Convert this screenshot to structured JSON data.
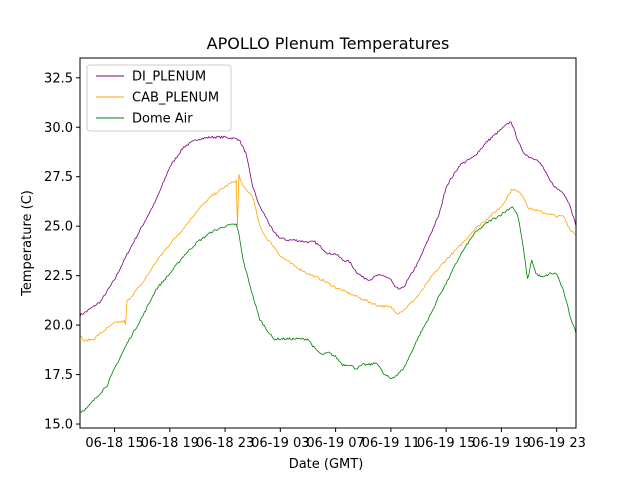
{
  "chart_data": {
    "type": "line",
    "title": "APOLLO Plenum Temperatures",
    "xlabel": "Date (GMT)",
    "ylabel": "Temperature (C)",
    "xlim": [
      12.5,
      48.4
    ],
    "ylim": [
      14.8,
      33.5
    ],
    "x_unit": "hours since 06-18 00:00 GMT",
    "xticks": [
      {
        "value": 15,
        "label": "06-18 15"
      },
      {
        "value": 19,
        "label": "06-18 19"
      },
      {
        "value": 23,
        "label": "06-18 23"
      },
      {
        "value": 27,
        "label": "06-19 03"
      },
      {
        "value": 31,
        "label": "06-19 07"
      },
      {
        "value": 35,
        "label": "06-19 11"
      },
      {
        "value": 39,
        "label": "06-19 15"
      },
      {
        "value": 43,
        "label": "06-19 19"
      },
      {
        "value": 47,
        "label": "06-19 23"
      }
    ],
    "yticks": [
      {
        "value": 15.0,
        "label": "15.0"
      },
      {
        "value": 17.5,
        "label": "17.5"
      },
      {
        "value": 20.0,
        "label": "20.0"
      },
      {
        "value": 22.5,
        "label": "22.5"
      },
      {
        "value": 25.0,
        "label": "25.0"
      },
      {
        "value": 27.5,
        "label": "27.5"
      },
      {
        "value": 30.0,
        "label": "30.0"
      },
      {
        "value": 32.5,
        "label": "32.5"
      }
    ],
    "legend_position": "top-left",
    "series": [
      {
        "name": "DI_PLENUM",
        "color": "#800080",
        "points": [
          [
            12.5,
            20.5
          ],
          [
            13.0,
            20.7
          ],
          [
            14.0,
            21.2
          ],
          [
            15.0,
            22.3
          ],
          [
            16.0,
            23.7
          ],
          [
            17.0,
            25.0
          ],
          [
            18.0,
            26.3
          ],
          [
            19.0,
            28.0
          ],
          [
            20.0,
            29.0
          ],
          [
            21.0,
            29.4
          ],
          [
            22.0,
            29.5
          ],
          [
            23.0,
            29.5
          ],
          [
            24.0,
            29.4
          ],
          [
            24.5,
            28.7
          ],
          [
            25.0,
            27.0
          ],
          [
            25.5,
            26.0
          ],
          [
            26.0,
            25.4
          ],
          [
            26.5,
            24.7
          ],
          [
            27.0,
            24.4
          ],
          [
            27.5,
            24.3
          ],
          [
            28.0,
            24.3
          ],
          [
            29.0,
            24.2
          ],
          [
            29.5,
            24.2
          ],
          [
            30.0,
            23.9
          ],
          [
            30.5,
            23.6
          ],
          [
            31.0,
            23.6
          ],
          [
            31.5,
            23.3
          ],
          [
            32.0,
            23.2
          ],
          [
            32.5,
            22.7
          ],
          [
            33.0,
            22.4
          ],
          [
            33.5,
            22.3
          ],
          [
            34.0,
            22.5
          ],
          [
            34.5,
            22.5
          ],
          [
            35.0,
            22.3
          ],
          [
            35.3,
            21.9
          ],
          [
            35.7,
            21.8
          ],
          [
            36.0,
            22.0
          ],
          [
            37.0,
            23.2
          ],
          [
            38.0,
            24.8
          ],
          [
            38.5,
            25.6
          ],
          [
            39.0,
            27.0
          ],
          [
            40.0,
            28.1
          ],
          [
            41.0,
            28.5
          ],
          [
            42.0,
            29.3
          ],
          [
            43.0,
            29.9
          ],
          [
            43.7,
            30.3
          ],
          [
            44.0,
            29.7
          ],
          [
            44.5,
            28.8
          ],
          [
            45.0,
            28.5
          ],
          [
            45.5,
            28.4
          ],
          [
            46.0,
            28.0
          ],
          [
            46.5,
            27.3
          ],
          [
            47.0,
            26.9
          ],
          [
            47.5,
            26.7
          ],
          [
            48.0,
            26.0
          ],
          [
            48.4,
            25.0
          ]
        ]
      },
      {
        "name": "CAB_PLENUM",
        "color": "#ffa500",
        "points": [
          [
            12.5,
            19.5
          ],
          [
            12.8,
            19.2
          ],
          [
            13.5,
            19.3
          ],
          [
            14.0,
            19.6
          ],
          [
            15.0,
            20.1
          ],
          [
            15.7,
            20.2
          ],
          [
            15.8,
            20.0
          ],
          [
            15.9,
            21.2
          ],
          [
            17.0,
            22.1
          ],
          [
            18.0,
            23.2
          ],
          [
            19.0,
            24.1
          ],
          [
            20.0,
            24.9
          ],
          [
            21.0,
            25.8
          ],
          [
            22.0,
            26.5
          ],
          [
            23.0,
            27.0
          ],
          [
            23.5,
            27.2
          ],
          [
            23.8,
            27.3
          ],
          [
            23.9,
            25.0
          ],
          [
            24.0,
            27.6
          ],
          [
            24.3,
            27.0
          ],
          [
            25.0,
            26.5
          ],
          [
            25.5,
            25.0
          ],
          [
            26.0,
            24.4
          ],
          [
            26.5,
            24.0
          ],
          [
            27.0,
            23.5
          ],
          [
            28.0,
            23.0
          ],
          [
            29.0,
            22.6
          ],
          [
            30.0,
            22.3
          ],
          [
            31.0,
            21.9
          ],
          [
            32.0,
            21.6
          ],
          [
            33.0,
            21.3
          ],
          [
            34.0,
            21.0
          ],
          [
            35.0,
            20.9
          ],
          [
            35.5,
            20.6
          ],
          [
            36.0,
            20.8
          ],
          [
            37.0,
            21.5
          ],
          [
            38.0,
            22.5
          ],
          [
            39.0,
            23.3
          ],
          [
            40.0,
            24.0
          ],
          [
            41.0,
            24.8
          ],
          [
            42.0,
            25.4
          ],
          [
            43.0,
            26.0
          ],
          [
            43.8,
            26.9
          ],
          [
            44.5,
            26.6
          ],
          [
            45.0,
            25.9
          ],
          [
            45.5,
            25.8
          ],
          [
            46.0,
            25.7
          ],
          [
            46.5,
            25.6
          ],
          [
            47.0,
            25.5
          ],
          [
            47.5,
            25.5
          ],
          [
            48.0,
            24.8
          ],
          [
            48.4,
            24.6
          ]
        ]
      },
      {
        "name": "Dome Air",
        "color": "#008000",
        "points": [
          [
            12.5,
            15.6
          ],
          [
            13.0,
            15.8
          ],
          [
            14.0,
            16.6
          ],
          [
            14.5,
            17.0
          ],
          [
            15.0,
            17.8
          ],
          [
            16.0,
            19.2
          ],
          [
            17.0,
            20.4
          ],
          [
            18.0,
            21.8
          ],
          [
            19.0,
            22.6
          ],
          [
            20.0,
            23.5
          ],
          [
            21.0,
            24.2
          ],
          [
            22.0,
            24.7
          ],
          [
            23.0,
            25.0
          ],
          [
            23.8,
            25.1
          ],
          [
            24.0,
            24.6
          ],
          [
            24.3,
            23.3
          ],
          [
            25.0,
            21.5
          ],
          [
            25.5,
            20.3
          ],
          [
            26.0,
            19.8
          ],
          [
            26.5,
            19.3
          ],
          [
            27.0,
            19.3
          ],
          [
            28.0,
            19.3
          ],
          [
            29.0,
            19.3
          ],
          [
            29.5,
            18.8
          ],
          [
            30.0,
            18.5
          ],
          [
            30.5,
            18.6
          ],
          [
            31.0,
            18.4
          ],
          [
            31.5,
            18.0
          ],
          [
            32.0,
            18.0
          ],
          [
            32.5,
            17.8
          ],
          [
            33.0,
            18.0
          ],
          [
            33.5,
            18.0
          ],
          [
            34.0,
            18.1
          ],
          [
            34.5,
            17.5
          ],
          [
            35.0,
            17.3
          ],
          [
            35.5,
            17.5
          ],
          [
            36.0,
            17.9
          ],
          [
            37.0,
            19.4
          ],
          [
            38.0,
            20.7
          ],
          [
            38.5,
            21.5
          ],
          [
            39.0,
            22.1
          ],
          [
            40.0,
            23.5
          ],
          [
            41.0,
            24.6
          ],
          [
            42.0,
            25.2
          ],
          [
            43.0,
            25.6
          ],
          [
            43.8,
            26.0
          ],
          [
            44.2,
            25.5
          ],
          [
            44.5,
            24.3
          ],
          [
            44.9,
            22.3
          ],
          [
            45.2,
            23.3
          ],
          [
            45.5,
            22.6
          ],
          [
            46.0,
            22.4
          ],
          [
            46.5,
            22.6
          ],
          [
            47.0,
            22.6
          ],
          [
            47.5,
            21.7
          ],
          [
            48.0,
            20.4
          ],
          [
            48.4,
            19.6
          ]
        ]
      }
    ]
  }
}
